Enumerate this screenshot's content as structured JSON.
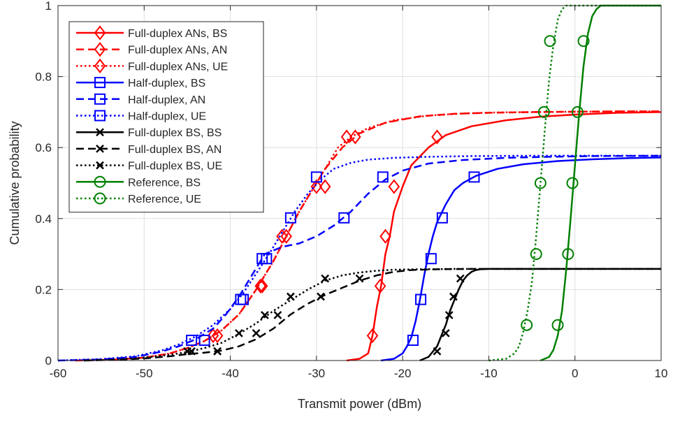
{
  "chart_data": {
    "type": "line",
    "xlabel": "Transmit power (dBm)",
    "ylabel": "Cumulative probability",
    "xlim": [
      -60,
      10
    ],
    "ylim": [
      0,
      1
    ],
    "xticks": [
      "-60",
      "-50",
      "-40",
      "-30",
      "-20",
      "-10",
      "0",
      "10"
    ],
    "yticks": [
      "0",
      "0.2",
      "0.4",
      "0.6",
      "0.8",
      "1"
    ],
    "grid": true,
    "legend_position": "top-left",
    "series": [
      {
        "name": "Full-duplex ANs, BS",
        "color": "#ff0000",
        "dash": "solid",
        "marker": "diamond",
        "x": [
          -26.5,
          -25,
          -24,
          -23.5,
          -23,
          -22.5,
          -22,
          -21.5,
          -21,
          -20,
          -19,
          -17,
          -15,
          -12,
          -8,
          -4,
          0,
          5,
          10
        ],
        "y": [
          0,
          0.005,
          0.02,
          0.07,
          0.15,
          0.21,
          0.3,
          0.35,
          0.42,
          0.49,
          0.55,
          0.6,
          0.635,
          0.66,
          0.677,
          0.687,
          0.693,
          0.698,
          0.7
        ],
        "markers_x": [
          -23.5,
          -22.6,
          -22,
          -21,
          -16
        ],
        "markers_y": [
          0.07,
          0.21,
          0.35,
          0.49,
          0.63
        ]
      },
      {
        "name": "Full-duplex ANs, AN",
        "color": "#ff0000",
        "dash": "dashed",
        "marker": "diamond",
        "x": [
          -58,
          -54,
          -50,
          -47,
          -45,
          -43,
          -41,
          -39,
          -37,
          -35,
          -33.5,
          -32,
          -30.5,
          -29,
          -27,
          -25,
          -22,
          -18,
          -14,
          -10,
          -5,
          0,
          5,
          10
        ],
        "y": [
          0,
          0.002,
          0.008,
          0.02,
          0.035,
          0.055,
          0.085,
          0.13,
          0.2,
          0.28,
          0.35,
          0.42,
          0.48,
          0.54,
          0.6,
          0.64,
          0.67,
          0.688,
          0.695,
          0.698,
          0.7,
          0.701,
          0.702,
          0.702
        ],
        "markers_x": [
          -41.5,
          -36.5,
          -33.5,
          -29,
          -25.5
        ],
        "markers_y": [
          0.07,
          0.21,
          0.35,
          0.49,
          0.63
        ]
      },
      {
        "name": "Full-duplex ANs, UE",
        "color": "#ff0000",
        "dash": "dotted",
        "marker": "diamond",
        "x": [
          -58,
          -54,
          -50,
          -47,
          -45,
          -43,
          -41,
          -39,
          -37,
          -35,
          -33.5,
          -32,
          -30.5,
          -29,
          -27.5,
          -26,
          -24,
          -21,
          -17,
          -13,
          -9,
          -4,
          0,
          5,
          10
        ],
        "y": [
          0,
          0.002,
          0.008,
          0.02,
          0.035,
          0.055,
          0.085,
          0.13,
          0.2,
          0.28,
          0.35,
          0.42,
          0.48,
          0.54,
          0.6,
          0.63,
          0.655,
          0.677,
          0.69,
          0.696,
          0.699,
          0.7,
          0.701,
          0.702,
          0.702
        ],
        "markers_x": [
          -42,
          -36.3,
          -34,
          -30,
          -26.5
        ],
        "markers_y": [
          0.07,
          0.21,
          0.35,
          0.49,
          0.63
        ]
      },
      {
        "name": "Half-duplex, BS",
        "color": "#0000ff",
        "dash": "solid",
        "marker": "square",
        "x": [
          -22.5,
          -21,
          -20,
          -19.5,
          -19,
          -18.5,
          -18,
          -17.5,
          -17,
          -16.5,
          -16,
          -15,
          -14,
          -13,
          -11.5,
          -9,
          -6,
          -2,
          2,
          6,
          10
        ],
        "y": [
          0,
          0.005,
          0.02,
          0.04,
          0.065,
          0.11,
          0.17,
          0.24,
          0.3,
          0.35,
          0.39,
          0.44,
          0.48,
          0.5,
          0.52,
          0.54,
          0.553,
          0.562,
          0.567,
          0.57,
          0.572
        ],
        "markers_x": [
          -18.8,
          -17.9,
          -16.7,
          -15.4,
          -11.7
        ],
        "markers_y": [
          0.057,
          0.172,
          0.287,
          0.402,
          0.517
        ]
      },
      {
        "name": "Half-duplex, AN",
        "color": "#0000ff",
        "dash": "dashed",
        "marker": "square",
        "x": [
          -60,
          -55,
          -51,
          -48,
          -46,
          -44,
          -42,
          -40.5,
          -39,
          -37.5,
          -36,
          -34,
          -32,
          -30,
          -28,
          -26,
          -24,
          -22,
          -20,
          -17,
          -13,
          -8,
          -3,
          2,
          10
        ],
        "y": [
          0,
          0.003,
          0.01,
          0.025,
          0.04,
          0.06,
          0.09,
          0.13,
          0.18,
          0.24,
          0.3,
          0.32,
          0.33,
          0.35,
          0.38,
          0.42,
          0.47,
          0.51,
          0.535,
          0.555,
          0.565,
          0.571,
          0.574,
          0.576,
          0.577
        ],
        "markers_x": [
          -44.5,
          -38.5,
          -36.3,
          -26.8,
          -22.3
        ],
        "markers_y": [
          0.057,
          0.172,
          0.287,
          0.402,
          0.517
        ]
      },
      {
        "name": "Half-duplex, UE",
        "color": "#0000ff",
        "dash": "dotted",
        "marker": "square",
        "x": [
          -60,
          -55,
          -51,
          -48,
          -46,
          -44,
          -42,
          -40,
          -38.5,
          -37,
          -35.5,
          -34,
          -32.5,
          -31,
          -29.5,
          -28,
          -26,
          -24,
          -21,
          -17,
          -12,
          -5,
          0,
          5,
          10
        ],
        "y": [
          0,
          0.004,
          0.012,
          0.028,
          0.045,
          0.068,
          0.1,
          0.145,
          0.19,
          0.245,
          0.3,
          0.36,
          0.42,
          0.47,
          0.51,
          0.54,
          0.557,
          0.566,
          0.571,
          0.574,
          0.576,
          0.577,
          0.577,
          0.577,
          0.577
        ],
        "markers_x": [
          -43,
          -38.8,
          -35.8,
          -33,
          -30
        ],
        "markers_y": [
          0.057,
          0.172,
          0.287,
          0.402,
          0.517
        ]
      },
      {
        "name": "Full-duplex BS, BS",
        "color": "#000000",
        "dash": "solid",
        "marker": "x",
        "x": [
          -18,
          -17,
          -16,
          -15.5,
          -15,
          -14.5,
          -14,
          -13.5,
          -13,
          -12.5,
          -12,
          -11.5,
          -11,
          -10,
          -8,
          -5,
          0,
          5,
          10
        ],
        "y": [
          0,
          0.01,
          0.04,
          0.07,
          0.1,
          0.14,
          0.17,
          0.2,
          0.225,
          0.24,
          0.25,
          0.255,
          0.257,
          0.258,
          0.258,
          0.258,
          0.258,
          0.258,
          0.258
        ],
        "markers_x": [
          -16,
          -15,
          -14.6,
          -14.1,
          -13.3
        ],
        "markers_y": [
          0.026,
          0.077,
          0.128,
          0.18,
          0.231
        ]
      },
      {
        "name": "Full-duplex BS, AN",
        "color": "#000000",
        "dash": "dashed",
        "marker": "x",
        "x": [
          -57,
          -53,
          -50,
          -47,
          -45,
          -43,
          -41,
          -39,
          -37,
          -35,
          -33,
          -31,
          -29,
          -27,
          -25,
          -23,
          -21,
          -19,
          -16,
          -12,
          -6,
          0,
          5,
          10
        ],
        "y": [
          0,
          0.002,
          0.006,
          0.012,
          0.018,
          0.022,
          0.028,
          0.04,
          0.06,
          0.09,
          0.13,
          0.16,
          0.185,
          0.205,
          0.225,
          0.24,
          0.25,
          0.255,
          0.257,
          0.258,
          0.258,
          0.258,
          0.258,
          0.258
        ],
        "markers_x": [
          -44.5,
          -41.5,
          -37,
          -34.5,
          -29.5,
          -25
        ],
        "markers_y": [
          0.026,
          0.026,
          0.077,
          0.128,
          0.18,
          0.231
        ]
      },
      {
        "name": "Full-duplex BS, UE",
        "color": "#000000",
        "dash": "dotted",
        "marker": "x",
        "x": [
          -57,
          -53,
          -50,
          -47,
          -45,
          -43,
          -41,
          -39,
          -37,
          -35,
          -33,
          -31,
          -29,
          -27,
          -25,
          -23,
          -21,
          -18,
          -14,
          -10,
          -5,
          0,
          5,
          10
        ],
        "y": [
          0,
          0.003,
          0.008,
          0.016,
          0.024,
          0.035,
          0.05,
          0.075,
          0.105,
          0.14,
          0.17,
          0.2,
          0.225,
          0.24,
          0.248,
          0.253,
          0.256,
          0.257,
          0.258,
          0.258,
          0.258,
          0.258,
          0.258,
          0.258
        ],
        "markers_x": [
          -45,
          -41.5,
          -39,
          -36,
          -33,
          -29
        ],
        "markers_y": [
          0.026,
          0.026,
          0.077,
          0.128,
          0.18,
          0.231
        ]
      },
      {
        "name": "Reference, BS",
        "color": "#008000",
        "dash": "solid",
        "marker": "circle",
        "x": [
          -4,
          -3,
          -2.5,
          -2,
          -1.5,
          -1,
          -0.5,
          0,
          0.5,
          1,
          1.5,
          2,
          2.5,
          3,
          5,
          7,
          10
        ],
        "y": [
          0,
          0.01,
          0.03,
          0.07,
          0.14,
          0.26,
          0.4,
          0.55,
          0.7,
          0.83,
          0.92,
          0.97,
          0.99,
          1.0,
          1.0,
          1.0,
          1.0
        ],
        "markers_x": [
          -2,
          -0.8,
          -0.3,
          0.3,
          1
        ],
        "markers_y": [
          0.1,
          0.3,
          0.5,
          0.7,
          0.9
        ]
      },
      {
        "name": "Reference, UE",
        "color": "#008000",
        "dash": "dotted",
        "marker": "circle",
        "x": [
          -10,
          -8,
          -7,
          -6.5,
          -6,
          -5.5,
          -5,
          -4.5,
          -4,
          -3.5,
          -3,
          -2.5,
          -2,
          -1.5,
          -1,
          0,
          5,
          10
        ],
        "y": [
          0,
          0.005,
          0.02,
          0.04,
          0.08,
          0.14,
          0.22,
          0.35,
          0.5,
          0.65,
          0.79,
          0.89,
          0.96,
          0.99,
          1.0,
          1.0,
          1.0,
          1.0
        ],
        "markers_x": [
          -5.6,
          -4.5,
          -4,
          -3.6,
          -2.9
        ],
        "markers_y": [
          0.1,
          0.3,
          0.5,
          0.7,
          0.9
        ]
      }
    ]
  }
}
